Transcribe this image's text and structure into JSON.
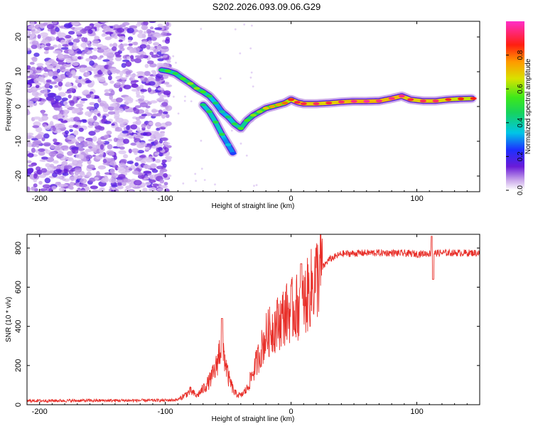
{
  "title": "S202.2026.093.09.06.G29",
  "chart_data": [
    {
      "type": "heatmap",
      "name": "spectrogram",
      "xlabel": "Height of straight line (km)",
      "ylabel": "Frequency (Hz)",
      "xlim": [
        -210,
        150
      ],
      "ylim": [
        -24.5,
        24.5
      ],
      "xticks": [
        -200,
        -100,
        0,
        100
      ],
      "yticks": [
        -20,
        -10,
        0,
        10,
        20
      ],
      "noise_region_x": [
        -210,
        -97
      ],
      "ridge": [
        {
          "x": -103,
          "y": 10.5,
          "a": 0.45
        },
        {
          "x": -98,
          "y": 10.2,
          "a": 0.55
        },
        {
          "x": -92,
          "y": 9.5,
          "a": 0.5
        },
        {
          "x": -86,
          "y": 8.0,
          "a": 0.55
        },
        {
          "x": -80,
          "y": 6.6,
          "a": 0.6
        },
        {
          "x": -75,
          "y": 5.2,
          "a": 0.6
        },
        {
          "x": -70,
          "y": 4.2,
          "a": 0.55
        },
        {
          "x": -65,
          "y": 3.0,
          "a": 0.5
        },
        {
          "x": -60,
          "y": 1.0,
          "a": 0.45
        },
        {
          "x": -55,
          "y": -1.5,
          "a": 0.4
        },
        {
          "x": -50,
          "y": -3.0,
          "a": 0.45
        },
        {
          "x": -45,
          "y": -5.0,
          "a": 0.5
        },
        {
          "x": -40,
          "y": -6.3,
          "a": 0.55
        },
        {
          "x": -35,
          "y": -4.0,
          "a": 0.55
        },
        {
          "x": -30,
          "y": -2.5,
          "a": 0.6
        },
        {
          "x": -25,
          "y": -1.5,
          "a": 0.6
        },
        {
          "x": -20,
          "y": -0.5,
          "a": 0.7
        },
        {
          "x": -15,
          "y": 0.0,
          "a": 0.75
        },
        {
          "x": -10,
          "y": 0.5,
          "a": 0.75
        },
        {
          "x": -5,
          "y": 1.0,
          "a": 0.8
        },
        {
          "x": 0,
          "y": 2.0,
          "a": 0.85
        },
        {
          "x": 5,
          "y": 1.2,
          "a": 0.9
        },
        {
          "x": 10,
          "y": 0.8,
          "a": 0.9
        },
        {
          "x": 20,
          "y": 0.8,
          "a": 0.92
        },
        {
          "x": 30,
          "y": 1.0,
          "a": 0.9
        },
        {
          "x": 40,
          "y": 1.3,
          "a": 0.93
        },
        {
          "x": 50,
          "y": 1.5,
          "a": 0.95
        },
        {
          "x": 60,
          "y": 1.5,
          "a": 0.97
        },
        {
          "x": 70,
          "y": 1.6,
          "a": 0.95
        },
        {
          "x": 80,
          "y": 2.3,
          "a": 0.95
        },
        {
          "x": 88,
          "y": 3.0,
          "a": 0.95
        },
        {
          "x": 95,
          "y": 2.0,
          "a": 0.9
        },
        {
          "x": 105,
          "y": 1.6,
          "a": 0.92
        },
        {
          "x": 115,
          "y": 1.6,
          "a": 0.93
        },
        {
          "x": 125,
          "y": 2.0,
          "a": 0.88
        },
        {
          "x": 135,
          "y": 2.2,
          "a": 0.86
        },
        {
          "x": 145,
          "y": 2.3,
          "a": 0.86
        }
      ],
      "branch": [
        {
          "x": -70,
          "y": 0.5,
          "a": 0.45
        },
        {
          "x": -65,
          "y": -1.5,
          "a": 0.5
        },
        {
          "x": -60,
          "y": -4.5,
          "a": 0.5
        },
        {
          "x": -55,
          "y": -8.0,
          "a": 0.5
        },
        {
          "x": -50,
          "y": -11.0,
          "a": 0.35
        },
        {
          "x": -46,
          "y": -13.5,
          "a": 0.25
        }
      ]
    },
    {
      "type": "line",
      "name": "snr",
      "xlabel": "Height of straight line (km)",
      "ylabel": "SNR (10 * v/v)",
      "xlim": [
        -210,
        150
      ],
      "ylim": [
        0,
        870
      ],
      "xticks": [
        -200,
        -100,
        0,
        100
      ],
      "yticks": [
        0,
        200,
        400,
        600,
        800
      ],
      "color": "#e8302a",
      "envelope": [
        {
          "x": -210,
          "y": 20
        },
        {
          "x": -100,
          "y": 22
        },
        {
          "x": -90,
          "y": 25
        },
        {
          "x": -83,
          "y": 55
        },
        {
          "x": -80,
          "y": 70
        },
        {
          "x": -75,
          "y": 45
        },
        {
          "x": -70,
          "y": 80
        },
        {
          "x": -65,
          "y": 120
        },
        {
          "x": -60,
          "y": 180
        },
        {
          "x": -56,
          "y": 300
        },
        {
          "x": -53,
          "y": 250
        },
        {
          "x": -50,
          "y": 140
        },
        {
          "x": -45,
          "y": 60
        },
        {
          "x": -40,
          "y": 45
        },
        {
          "x": -35,
          "y": 80
        },
        {
          "x": -30,
          "y": 170
        },
        {
          "x": -25,
          "y": 260
        },
        {
          "x": -20,
          "y": 350
        },
        {
          "x": -15,
          "y": 390
        },
        {
          "x": -10,
          "y": 420
        },
        {
          "x": -5,
          "y": 460
        },
        {
          "x": 0,
          "y": 480
        },
        {
          "x": 5,
          "y": 500
        },
        {
          "x": 10,
          "y": 520
        },
        {
          "x": 15,
          "y": 580
        },
        {
          "x": 20,
          "y": 650
        },
        {
          "x": 25,
          "y": 700
        },
        {
          "x": 30,
          "y": 740
        },
        {
          "x": 40,
          "y": 770
        },
        {
          "x": 60,
          "y": 775
        },
        {
          "x": 80,
          "y": 775
        },
        {
          "x": 100,
          "y": 770
        },
        {
          "x": 120,
          "y": 775
        },
        {
          "x": 150,
          "y": 775
        }
      ],
      "spikes": [
        {
          "x": -55,
          "y": 440
        },
        {
          "x": 8,
          "y": 720
        },
        {
          "x": 112,
          "y": 860
        },
        {
          "x": 113,
          "y": 640
        }
      ]
    }
  ],
  "colorbar": {
    "label": "Normalized spectral amplitude",
    "ticks": [
      "0.0",
      "0.2",
      "0.4",
      "0.6",
      "0.8"
    ],
    "range": [
      0,
      1
    ]
  }
}
